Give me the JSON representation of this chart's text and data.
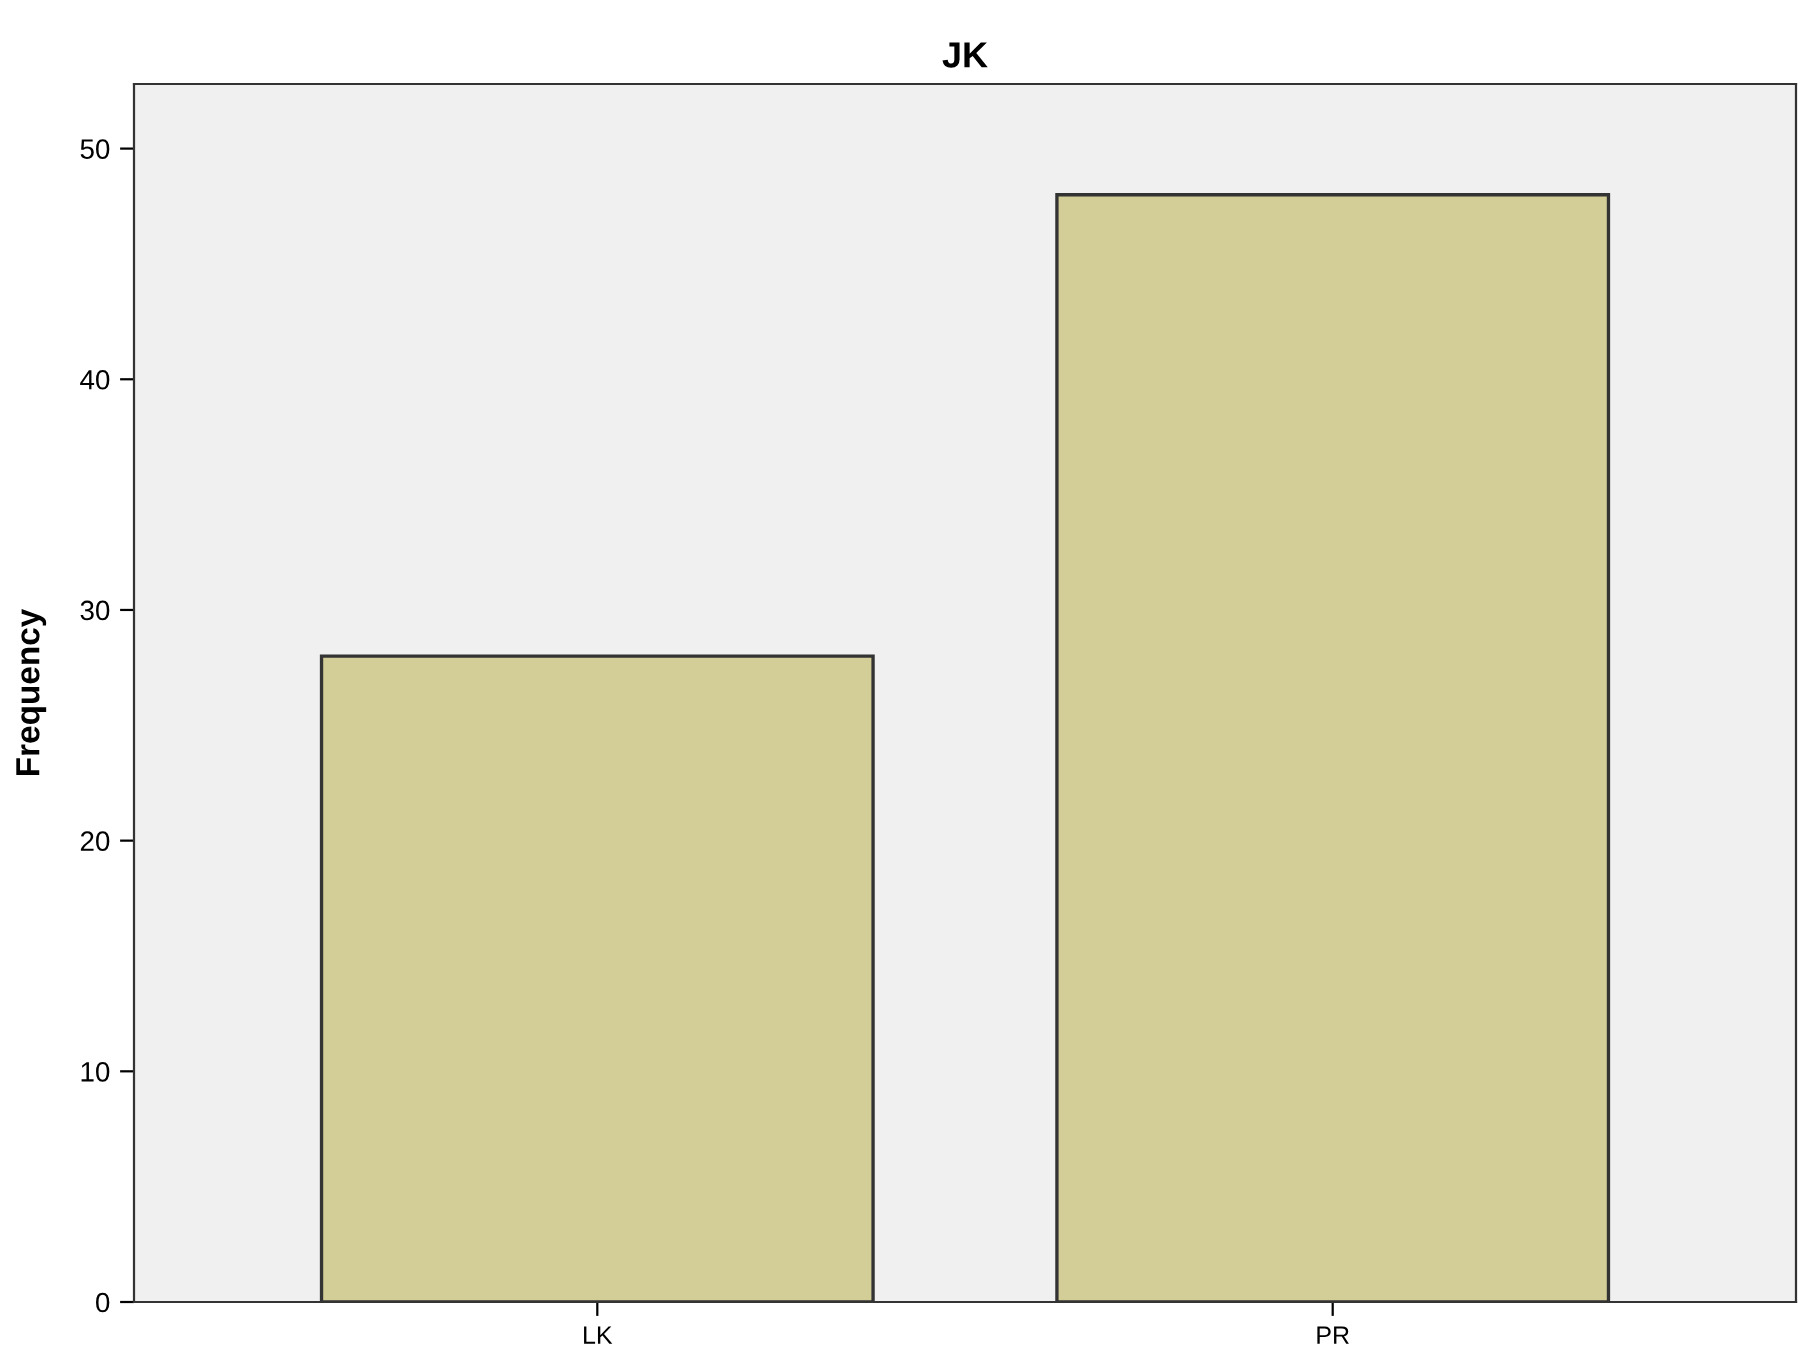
{
  "chart_data": {
    "type": "bar",
    "title": "JK",
    "ylabel": "Frequency",
    "categories": [
      "LK",
      "PR"
    ],
    "values": [
      28,
      48
    ],
    "color": "#d3ce97",
    "ylim": [
      0,
      52.8
    ],
    "yticks": [
      0,
      10,
      20,
      30,
      40,
      50
    ],
    "grid": false
  }
}
